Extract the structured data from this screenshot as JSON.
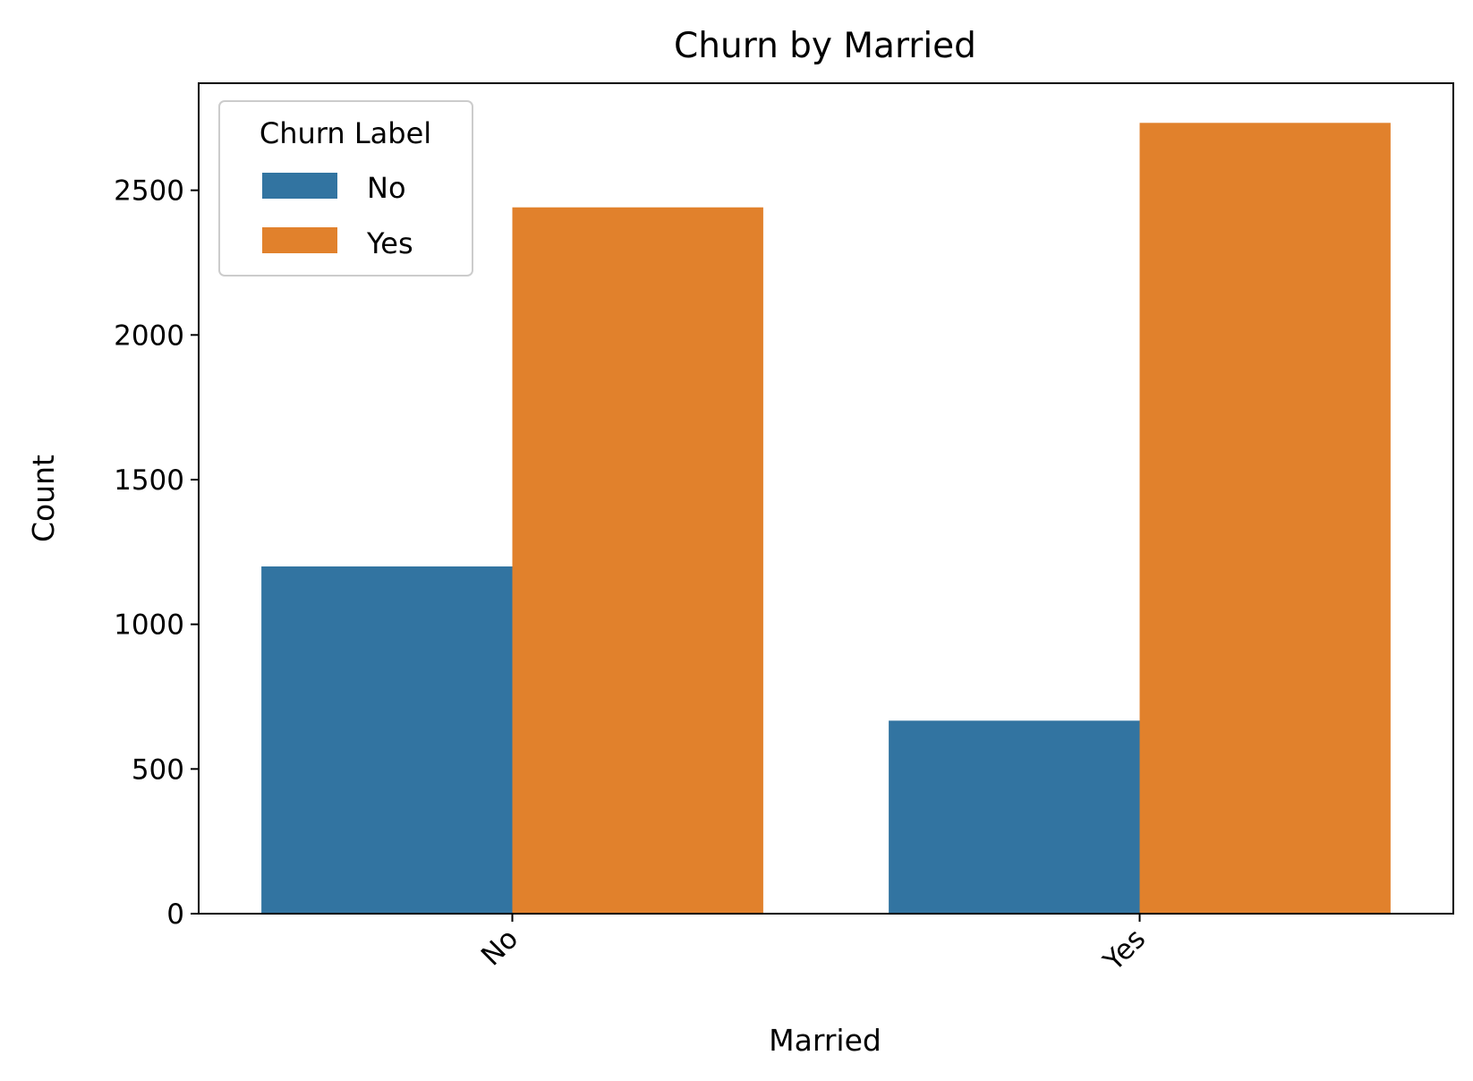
{
  "chart_data": {
    "type": "bar",
    "title": "Churn by Married",
    "xlabel": "Married",
    "ylabel": "Count",
    "categories": [
      "No",
      "Yes"
    ],
    "series": [
      {
        "name": "No",
        "values": [
          1200,
          667
        ],
        "color": "#3274a1"
      },
      {
        "name": "Yes",
        "values": [
          2441,
          2733
        ],
        "color": "#e1812c"
      }
    ],
    "ylim": [
      0,
      2870
    ],
    "yticks": [
      0,
      500,
      1000,
      1500,
      2000,
      2500
    ],
    "legend": {
      "title": "Churn Label",
      "placement": "top-left"
    },
    "grid": false,
    "xtick_rotation": 45
  }
}
